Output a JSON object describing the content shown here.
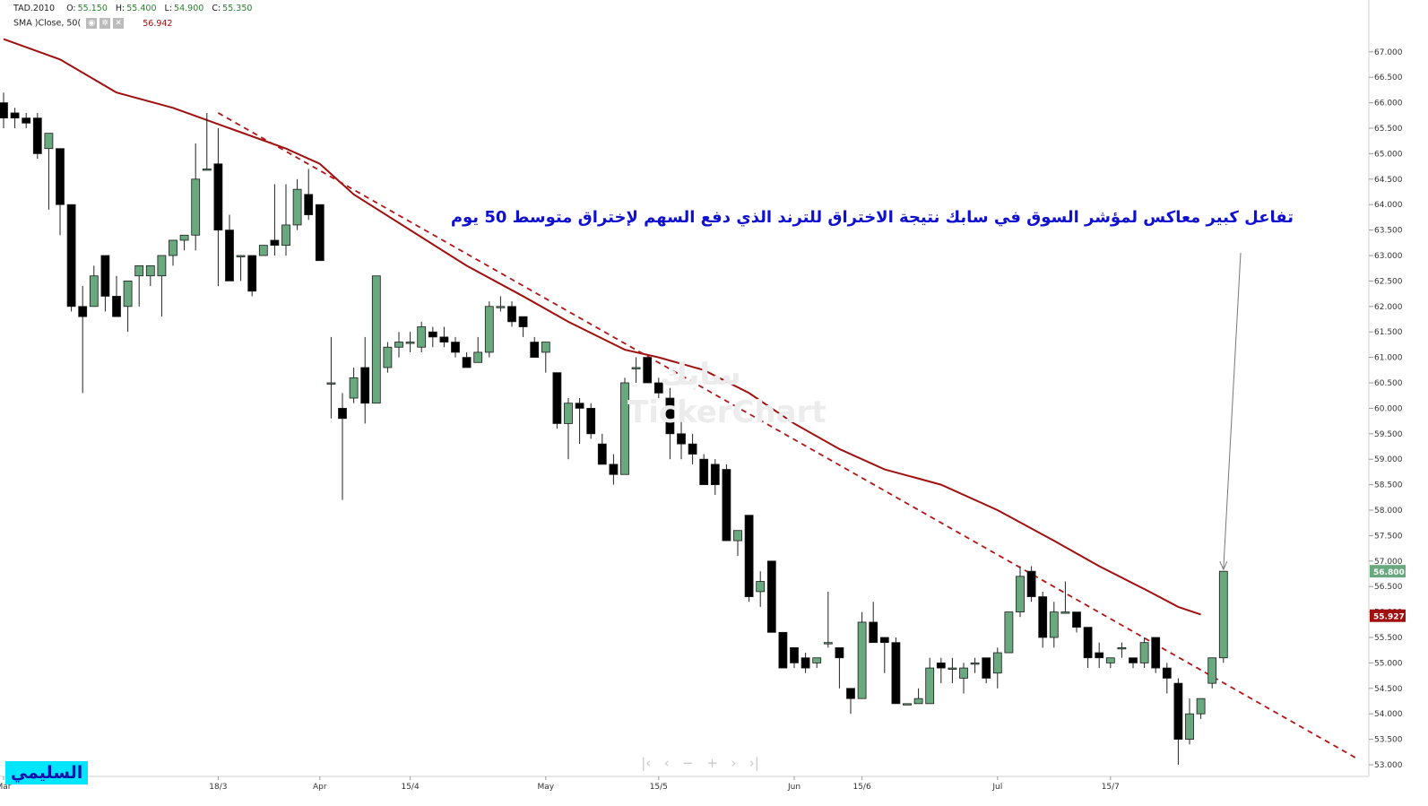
{
  "legend": {
    "symbol": "TAD.2010",
    "open_label": "O:",
    "open": "55.150",
    "high_label": "H:",
    "high": "55.400",
    "low_label": "L:",
    "low": "54.900",
    "close_label": "C:",
    "close": "55.350",
    "sma_label": "SMA  )Close, 50(",
    "sma_value": "56.942",
    "icons": [
      "eye-icon",
      "gear-icon",
      "close-icon"
    ]
  },
  "annotation": "تفاعل كبير معاكس لمؤشر السوق في سابك نتيجة الاختراق للترند الذي دفع السهم لإختراق متوسط 50 يوم",
  "author_badge": "السليمي",
  "watermark": {
    "arabic": "سابك",
    "english": "TickerChart"
  },
  "nav_icons": [
    "first-icon",
    "prev-icon",
    "zoom-out-icon",
    "zoom-in-icon",
    "next-icon",
    "last-icon"
  ],
  "colors": {
    "up": "#6aa87f",
    "down": "#000000",
    "sma": "#a01010",
    "trend": "#b31515",
    "annotation": "#1010d0"
  },
  "chart_data": {
    "type": "candlestick",
    "ylim": [
      52.8,
      67.3
    ],
    "yticks": [
      "53.000",
      "53.500",
      "54.000",
      "54.500",
      "55.000",
      "55.500",
      "56.000",
      "56.500",
      "57.000",
      "57.500",
      "58.000",
      "58.500",
      "59.000",
      "59.500",
      "60.000",
      "60.500",
      "61.000",
      "61.500",
      "62.000",
      "62.500",
      "63.000",
      "63.500",
      "64.000",
      "64.500",
      "65.000",
      "65.500",
      "66.000",
      "66.500",
      "67.000"
    ],
    "xticks": [
      {
        "i": 0,
        "label": "Mar"
      },
      {
        "i": 19,
        "label": "18/3"
      },
      {
        "i": 28,
        "label": "Apr"
      },
      {
        "i": 36,
        "label": "15/4"
      },
      {
        "i": 48,
        "label": "May"
      },
      {
        "i": 58,
        "label": "15/5"
      },
      {
        "i": 70,
        "label": "Jun"
      },
      {
        "i": 76,
        "label": "15/6"
      },
      {
        "i": 88,
        "label": "Jul"
      },
      {
        "i": 98,
        "label": "15/7"
      }
    ],
    "last_price_label": "56.800",
    "sma_price_label": "55.927",
    "candles": [
      [
        66.0,
        66.2,
        65.5,
        65.7
      ],
      [
        65.8,
        65.9,
        65.5,
        65.7
      ],
      [
        65.7,
        65.8,
        65.5,
        65.6
      ],
      [
        65.7,
        65.8,
        64.9,
        65.0
      ],
      [
        65.1,
        65.4,
        63.9,
        65.4
      ],
      [
        65.1,
        65.1,
        63.4,
        64.0
      ],
      [
        64.0,
        64.0,
        61.9,
        62.0
      ],
      [
        62.0,
        62.4,
        60.3,
        61.8
      ],
      [
        62.0,
        62.8,
        62.0,
        62.6
      ],
      [
        63.0,
        63.0,
        61.9,
        62.2
      ],
      [
        62.2,
        62.6,
        61.8,
        61.8
      ],
      [
        62.0,
        62.5,
        61.5,
        62.5
      ],
      [
        62.6,
        62.8,
        62.0,
        62.8
      ],
      [
        62.6,
        62.8,
        62.4,
        62.8
      ],
      [
        62.6,
        63.0,
        61.8,
        63.0
      ],
      [
        63.0,
        63.3,
        62.8,
        63.3
      ],
      [
        63.3,
        63.4,
        63.1,
        63.4
      ],
      [
        63.4,
        65.2,
        63.1,
        64.5
      ],
      [
        64.7,
        65.8,
        64.7,
        64.7
      ],
      [
        64.8,
        65.5,
        62.4,
        63.5
      ],
      [
        63.5,
        63.8,
        62.5,
        62.5
      ],
      [
        63.0,
        63.0,
        62.5,
        63.0
      ],
      [
        63.0,
        63.0,
        62.2,
        62.3
      ],
      [
        63.0,
        63.2,
        63.0,
        63.2
      ],
      [
        63.3,
        64.4,
        63.0,
        63.2
      ],
      [
        63.2,
        64.4,
        63.0,
        63.6
      ],
      [
        63.6,
        64.5,
        63.5,
        64.3
      ],
      [
        64.2,
        64.7,
        63.7,
        63.8
      ],
      [
        64.0,
        64.0,
        62.9,
        62.9
      ],
      [
        60.5,
        61.4,
        59.8,
        60.5
      ],
      [
        60.0,
        60.3,
        58.2,
        59.8
      ],
      [
        60.2,
        60.8,
        60.1,
        60.6
      ],
      [
        60.8,
        61.4,
        59.7,
        60.1
      ],
      [
        60.1,
        62.6,
        60.1,
        62.6
      ],
      [
        60.8,
        61.3,
        60.7,
        61.2
      ],
      [
        61.2,
        61.5,
        61.0,
        61.3
      ],
      [
        61.3,
        61.5,
        61.1,
        61.3
      ],
      [
        61.2,
        61.7,
        61.1,
        61.6
      ],
      [
        61.5,
        61.6,
        61.2,
        61.4
      ],
      [
        61.4,
        61.6,
        61.2,
        61.3
      ],
      [
        61.3,
        61.4,
        61.0,
        61.1
      ],
      [
        61.0,
        61.1,
        60.8,
        60.8
      ],
      [
        60.9,
        61.4,
        60.9,
        61.1
      ],
      [
        61.1,
        62.1,
        61.0,
        62.0
      ],
      [
        62.0,
        62.2,
        61.9,
        62.0
      ],
      [
        62.0,
        62.1,
        61.6,
        61.7
      ],
      [
        61.8,
        61.8,
        61.4,
        61.6
      ],
      [
        61.3,
        61.4,
        61.0,
        61.0
      ],
      [
        61.1,
        61.3,
        60.7,
        61.3
      ],
      [
        60.7,
        60.7,
        59.6,
        59.7
      ],
      [
        59.7,
        60.2,
        59.0,
        60.1
      ],
      [
        60.1,
        60.2,
        59.3,
        60.0
      ],
      [
        60.0,
        60.1,
        59.4,
        59.5
      ],
      [
        59.3,
        59.5,
        58.9,
        58.9
      ],
      [
        58.9,
        59.1,
        58.5,
        58.7
      ],
      [
        58.7,
        60.6,
        58.7,
        60.5
      ],
      [
        60.8,
        61.0,
        60.5,
        60.8
      ],
      [
        61.0,
        61.0,
        60.5,
        60.5
      ],
      [
        60.5,
        60.6,
        60.2,
        60.3
      ],
      [
        60.2,
        60.4,
        59.0,
        59.5
      ],
      [
        59.5,
        59.9,
        59.0,
        59.3
      ],
      [
        59.3,
        59.5,
        58.9,
        59.1
      ],
      [
        59.0,
        59.1,
        58.5,
        58.5
      ],
      [
        58.9,
        59.0,
        58.3,
        58.5
      ],
      [
        58.8,
        58.9,
        57.4,
        57.4
      ],
      [
        57.4,
        57.6,
        57.1,
        57.6
      ],
      [
        57.9,
        57.9,
        56.2,
        56.3
      ],
      [
        56.4,
        56.8,
        56.1,
        56.6
      ],
      [
        57.0,
        57.0,
        55.6,
        55.6
      ],
      [
        55.6,
        55.6,
        54.9,
        54.9
      ],
      [
        55.3,
        55.3,
        54.9,
        55.0
      ],
      [
        55.1,
        55.2,
        54.8,
        54.9
      ],
      [
        55.0,
        55.1,
        54.9,
        55.1
      ],
      [
        55.4,
        56.4,
        55.3,
        55.4
      ],
      [
        55.3,
        55.3,
        54.5,
        55.1
      ],
      [
        54.5,
        54.5,
        54.0,
        54.3
      ],
      [
        54.3,
        56.0,
        54.3,
        55.8
      ],
      [
        55.8,
        56.2,
        55.4,
        55.4
      ],
      [
        55.5,
        55.5,
        54.8,
        55.4
      ],
      [
        55.4,
        55.5,
        54.2,
        54.2
      ],
      [
        54.2,
        54.2,
        54.2,
        54.2
      ],
      [
        54.2,
        54.5,
        54.2,
        54.3
      ],
      [
        54.2,
        55.1,
        54.2,
        54.9
      ],
      [
        55.0,
        55.1,
        54.6,
        54.9
      ],
      [
        54.9,
        55.1,
        54.6,
        54.9
      ],
      [
        54.7,
        55.0,
        54.4,
        54.9
      ],
      [
        55.0,
        55.1,
        54.8,
        55.0
      ],
      [
        55.1,
        55.1,
        54.6,
        54.7
      ],
      [
        54.8,
        55.3,
        54.5,
        55.2
      ],
      [
        55.2,
        56.0,
        55.2,
        56.0
      ],
      [
        56.0,
        56.9,
        55.9,
        56.7
      ],
      [
        56.8,
        56.9,
        56.2,
        56.3
      ],
      [
        56.3,
        56.4,
        55.3,
        55.5
      ],
      [
        55.5,
        56.2,
        55.3,
        56.0
      ],
      [
        56.0,
        56.6,
        56.0,
        56.0
      ],
      [
        56.0,
        56.0,
        55.6,
        55.7
      ],
      [
        55.7,
        55.7,
        54.9,
        55.1
      ],
      [
        55.2,
        55.4,
        54.9,
        55.1
      ],
      [
        55.0,
        55.1,
        54.9,
        55.1
      ],
      [
        55.3,
        55.4,
        55.1,
        55.3
      ],
      [
        55.1,
        55.1,
        54.9,
        55.0
      ],
      [
        55.0,
        55.5,
        54.9,
        55.4
      ],
      [
        55.5,
        55.5,
        54.8,
        54.9
      ],
      [
        54.9,
        55.0,
        54.4,
        54.7
      ],
      [
        54.6,
        54.7,
        53.0,
        53.5
      ],
      [
        53.5,
        54.3,
        53.4,
        54.0
      ],
      [
        54.0,
        54.3,
        53.9,
        54.3
      ],
      [
        54.6,
        55.1,
        54.5,
        55.1
      ],
      [
        55.1,
        56.8,
        55.0,
        56.8
      ]
    ],
    "sma": [
      [
        0,
        67.25
      ],
      [
        5,
        66.85
      ],
      [
        10,
        66.2
      ],
      [
        15,
        65.9
      ],
      [
        20,
        65.5
      ],
      [
        25,
        65.1
      ],
      [
        28,
        64.8
      ],
      [
        31,
        64.2
      ],
      [
        36,
        63.5
      ],
      [
        41,
        62.8
      ],
      [
        46,
        62.2
      ],
      [
        50,
        61.7
      ],
      [
        55,
        61.15
      ],
      [
        58,
        61.0
      ],
      [
        62,
        60.75
      ],
      [
        66,
        60.3
      ],
      [
        70,
        59.7
      ],
      [
        74,
        59.2
      ],
      [
        78,
        58.8
      ],
      [
        83,
        58.5
      ],
      [
        88,
        58.0
      ],
      [
        93,
        57.4
      ],
      [
        97,
        56.9
      ],
      [
        101,
        56.45
      ],
      [
        104,
        56.1
      ],
      [
        106,
        55.95
      ]
    ],
    "trendline": [
      [
        19,
        65.8
      ],
      [
        120,
        53.1
      ]
    ]
  }
}
